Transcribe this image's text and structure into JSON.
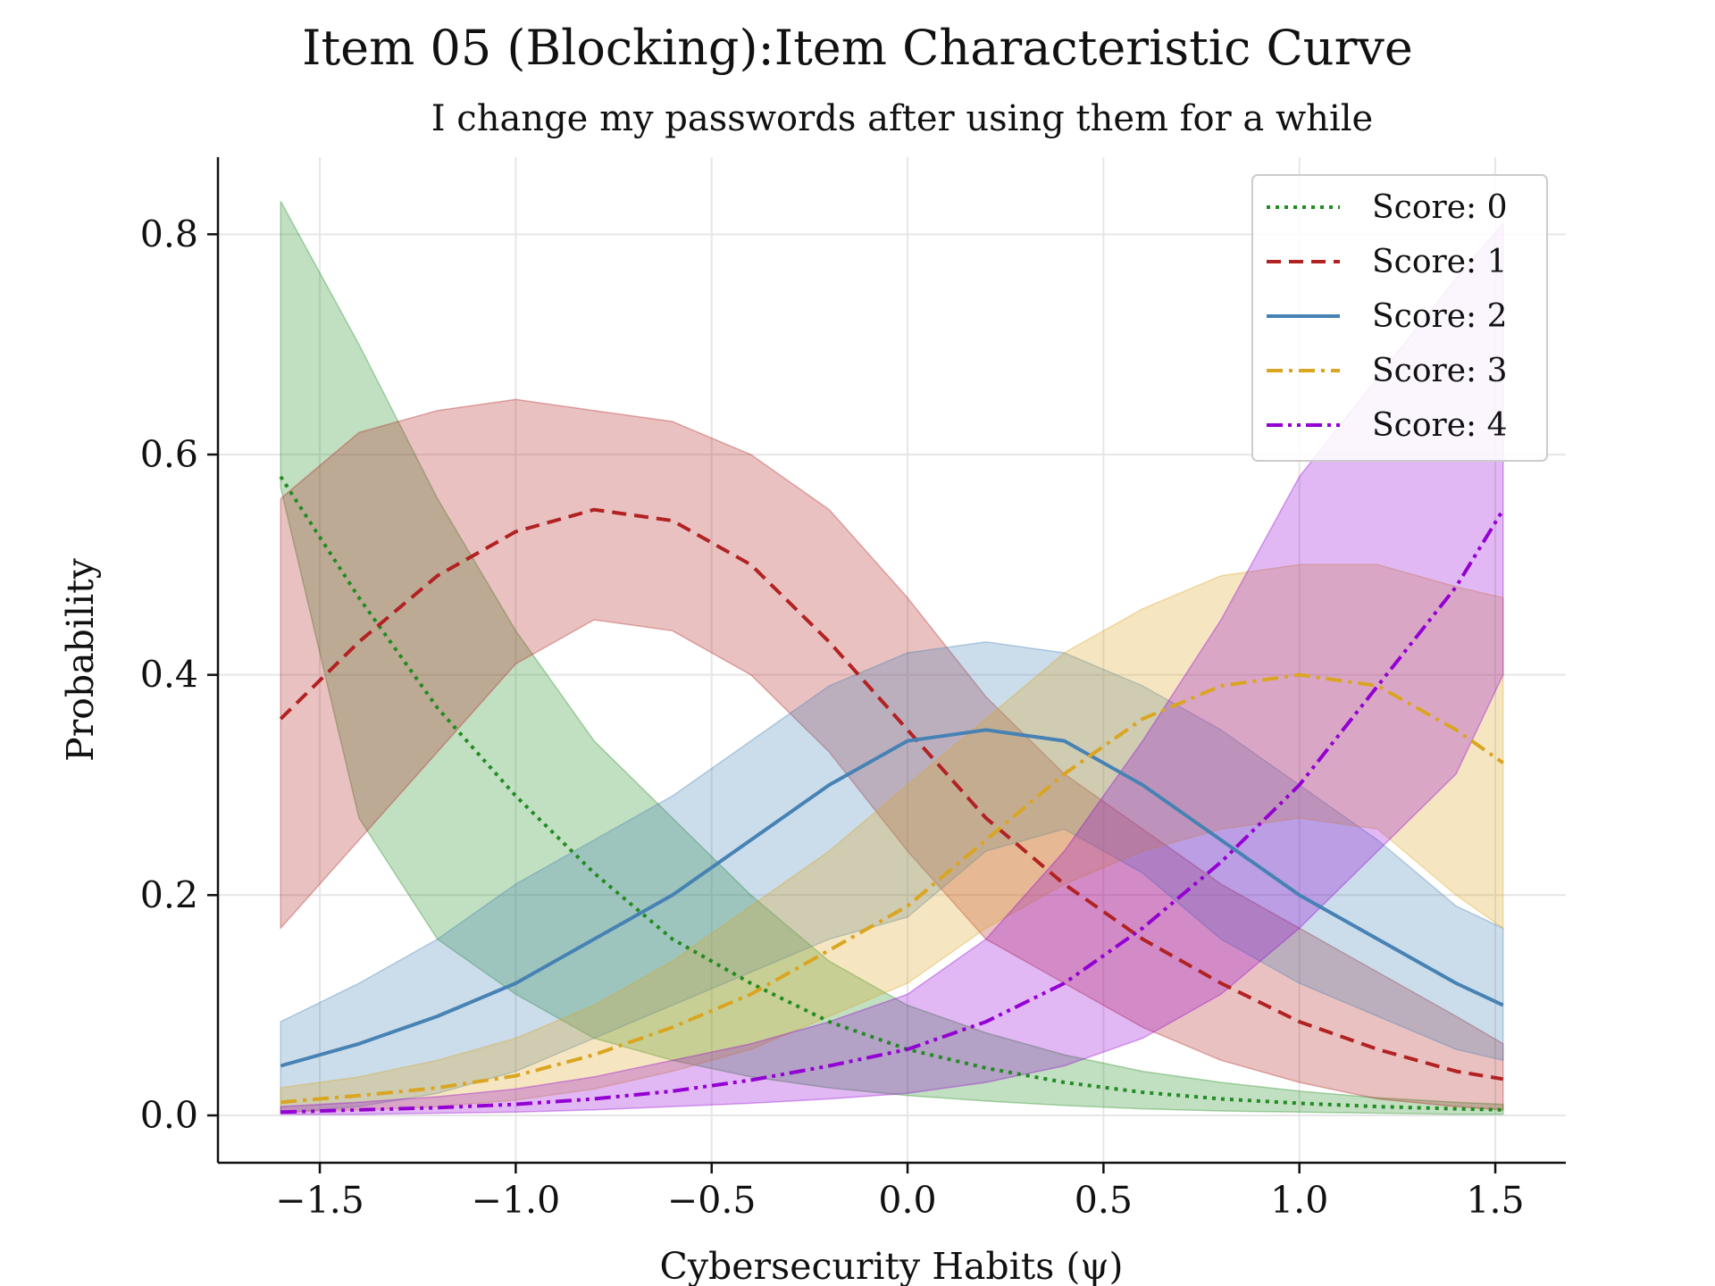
{
  "chart_data": {
    "type": "line",
    "title": "Item 05 (Blocking):Item Characteristic Curve",
    "subtitle": "I change my passwords after using them for a while",
    "xlabel": "Cybersecurity Habits (ψ)",
    "ylabel": "Probability",
    "xlim": [
      -1.76,
      1.68
    ],
    "ylim": [
      -0.043,
      0.87
    ],
    "xticks": [
      -1.5,
      -1.0,
      -0.5,
      0.0,
      0.5,
      1.0,
      1.5
    ],
    "xtick_labels": [
      "−1.5",
      "−1.0",
      "−0.5",
      "0.0",
      "0.5",
      "1.0",
      "1.5"
    ],
    "yticks": [
      0.0,
      0.2,
      0.4,
      0.6,
      0.8
    ],
    "ytick_labels": [
      "0.0",
      "0.2",
      "0.4",
      "0.6",
      "0.8"
    ],
    "grid": true,
    "legend_position": "top-right",
    "x": [
      -1.6,
      -1.4,
      -1.2,
      -1.0,
      -0.8,
      -0.6,
      -0.4,
      -0.2,
      0.0,
      0.2,
      0.4,
      0.6,
      0.8,
      1.0,
      1.2,
      1.4,
      1.52
    ],
    "series": [
      {
        "name": "Score: 0",
        "color": "#228b22",
        "dash": "dotted",
        "values": [
          0.58,
          0.47,
          0.37,
          0.29,
          0.22,
          0.16,
          0.12,
          0.085,
          0.06,
          0.043,
          0.03,
          0.021,
          0.015,
          0.011,
          0.008,
          0.006,
          0.005
        ],
        "lower": [
          0.57,
          0.27,
          0.16,
          0.11,
          0.07,
          0.05,
          0.035,
          0.025,
          0.018,
          0.013,
          0.009,
          0.006,
          0.004,
          0.003,
          0.002,
          0.001,
          0.001
        ],
        "upper": [
          0.83,
          0.7,
          0.56,
          0.44,
          0.34,
          0.27,
          0.2,
          0.14,
          0.1,
          0.075,
          0.055,
          0.04,
          0.03,
          0.022,
          0.016,
          0.012,
          0.01
        ]
      },
      {
        "name": "Score: 1",
        "color": "#b22222",
        "dash": "dashed",
        "values": [
          0.36,
          0.43,
          0.49,
          0.53,
          0.55,
          0.54,
          0.5,
          0.43,
          0.35,
          0.27,
          0.21,
          0.16,
          0.12,
          0.085,
          0.06,
          0.04,
          0.033
        ],
        "lower": [
          0.17,
          0.25,
          0.33,
          0.41,
          0.45,
          0.44,
          0.4,
          0.33,
          0.24,
          0.16,
          0.12,
          0.08,
          0.05,
          0.03,
          0.015,
          0.008,
          0.005
        ],
        "upper": [
          0.56,
          0.62,
          0.64,
          0.65,
          0.64,
          0.63,
          0.6,
          0.55,
          0.47,
          0.38,
          0.31,
          0.26,
          0.21,
          0.17,
          0.13,
          0.09,
          0.065
        ]
      },
      {
        "name": "Score: 2",
        "color": "#4682b4",
        "dash": "solid",
        "values": [
          0.045,
          0.065,
          0.09,
          0.12,
          0.16,
          0.2,
          0.25,
          0.3,
          0.34,
          0.35,
          0.34,
          0.3,
          0.25,
          0.2,
          0.16,
          0.12,
          0.1
        ],
        "lower": [
          0.002,
          0.008,
          0.02,
          0.04,
          0.07,
          0.1,
          0.13,
          0.16,
          0.18,
          0.24,
          0.26,
          0.22,
          0.16,
          0.12,
          0.09,
          0.06,
          0.05
        ],
        "upper": [
          0.085,
          0.12,
          0.16,
          0.21,
          0.25,
          0.29,
          0.34,
          0.39,
          0.42,
          0.43,
          0.42,
          0.39,
          0.35,
          0.3,
          0.25,
          0.19,
          0.17
        ]
      },
      {
        "name": "Score: 3",
        "color": "#daa520",
        "dash": "dashdot",
        "values": [
          0.012,
          0.018,
          0.025,
          0.036,
          0.055,
          0.08,
          0.11,
          0.15,
          0.19,
          0.25,
          0.31,
          0.36,
          0.39,
          0.4,
          0.39,
          0.35,
          0.32
        ],
        "lower": [
          0.003,
          0.005,
          0.008,
          0.014,
          0.024,
          0.04,
          0.06,
          0.09,
          0.12,
          0.17,
          0.21,
          0.24,
          0.26,
          0.27,
          0.26,
          0.2,
          0.17
        ],
        "upper": [
          0.025,
          0.035,
          0.05,
          0.07,
          0.1,
          0.14,
          0.19,
          0.24,
          0.3,
          0.36,
          0.42,
          0.46,
          0.49,
          0.5,
          0.5,
          0.48,
          0.47
        ]
      },
      {
        "name": "Score: 4",
        "color": "#9400d3",
        "dash": "dashdotdot",
        "values": [
          0.003,
          0.005,
          0.007,
          0.01,
          0.015,
          0.022,
          0.032,
          0.045,
          0.06,
          0.085,
          0.12,
          0.17,
          0.23,
          0.3,
          0.39,
          0.48,
          0.55
        ],
        "lower": [
          0.001,
          0.001,
          0.002,
          0.003,
          0.005,
          0.008,
          0.011,
          0.015,
          0.02,
          0.03,
          0.045,
          0.07,
          0.11,
          0.17,
          0.24,
          0.31,
          0.4
        ],
        "upper": [
          0.008,
          0.012,
          0.017,
          0.024,
          0.035,
          0.05,
          0.065,
          0.085,
          0.11,
          0.16,
          0.24,
          0.34,
          0.45,
          0.58,
          0.67,
          0.76,
          0.81
        ]
      }
    ]
  }
}
